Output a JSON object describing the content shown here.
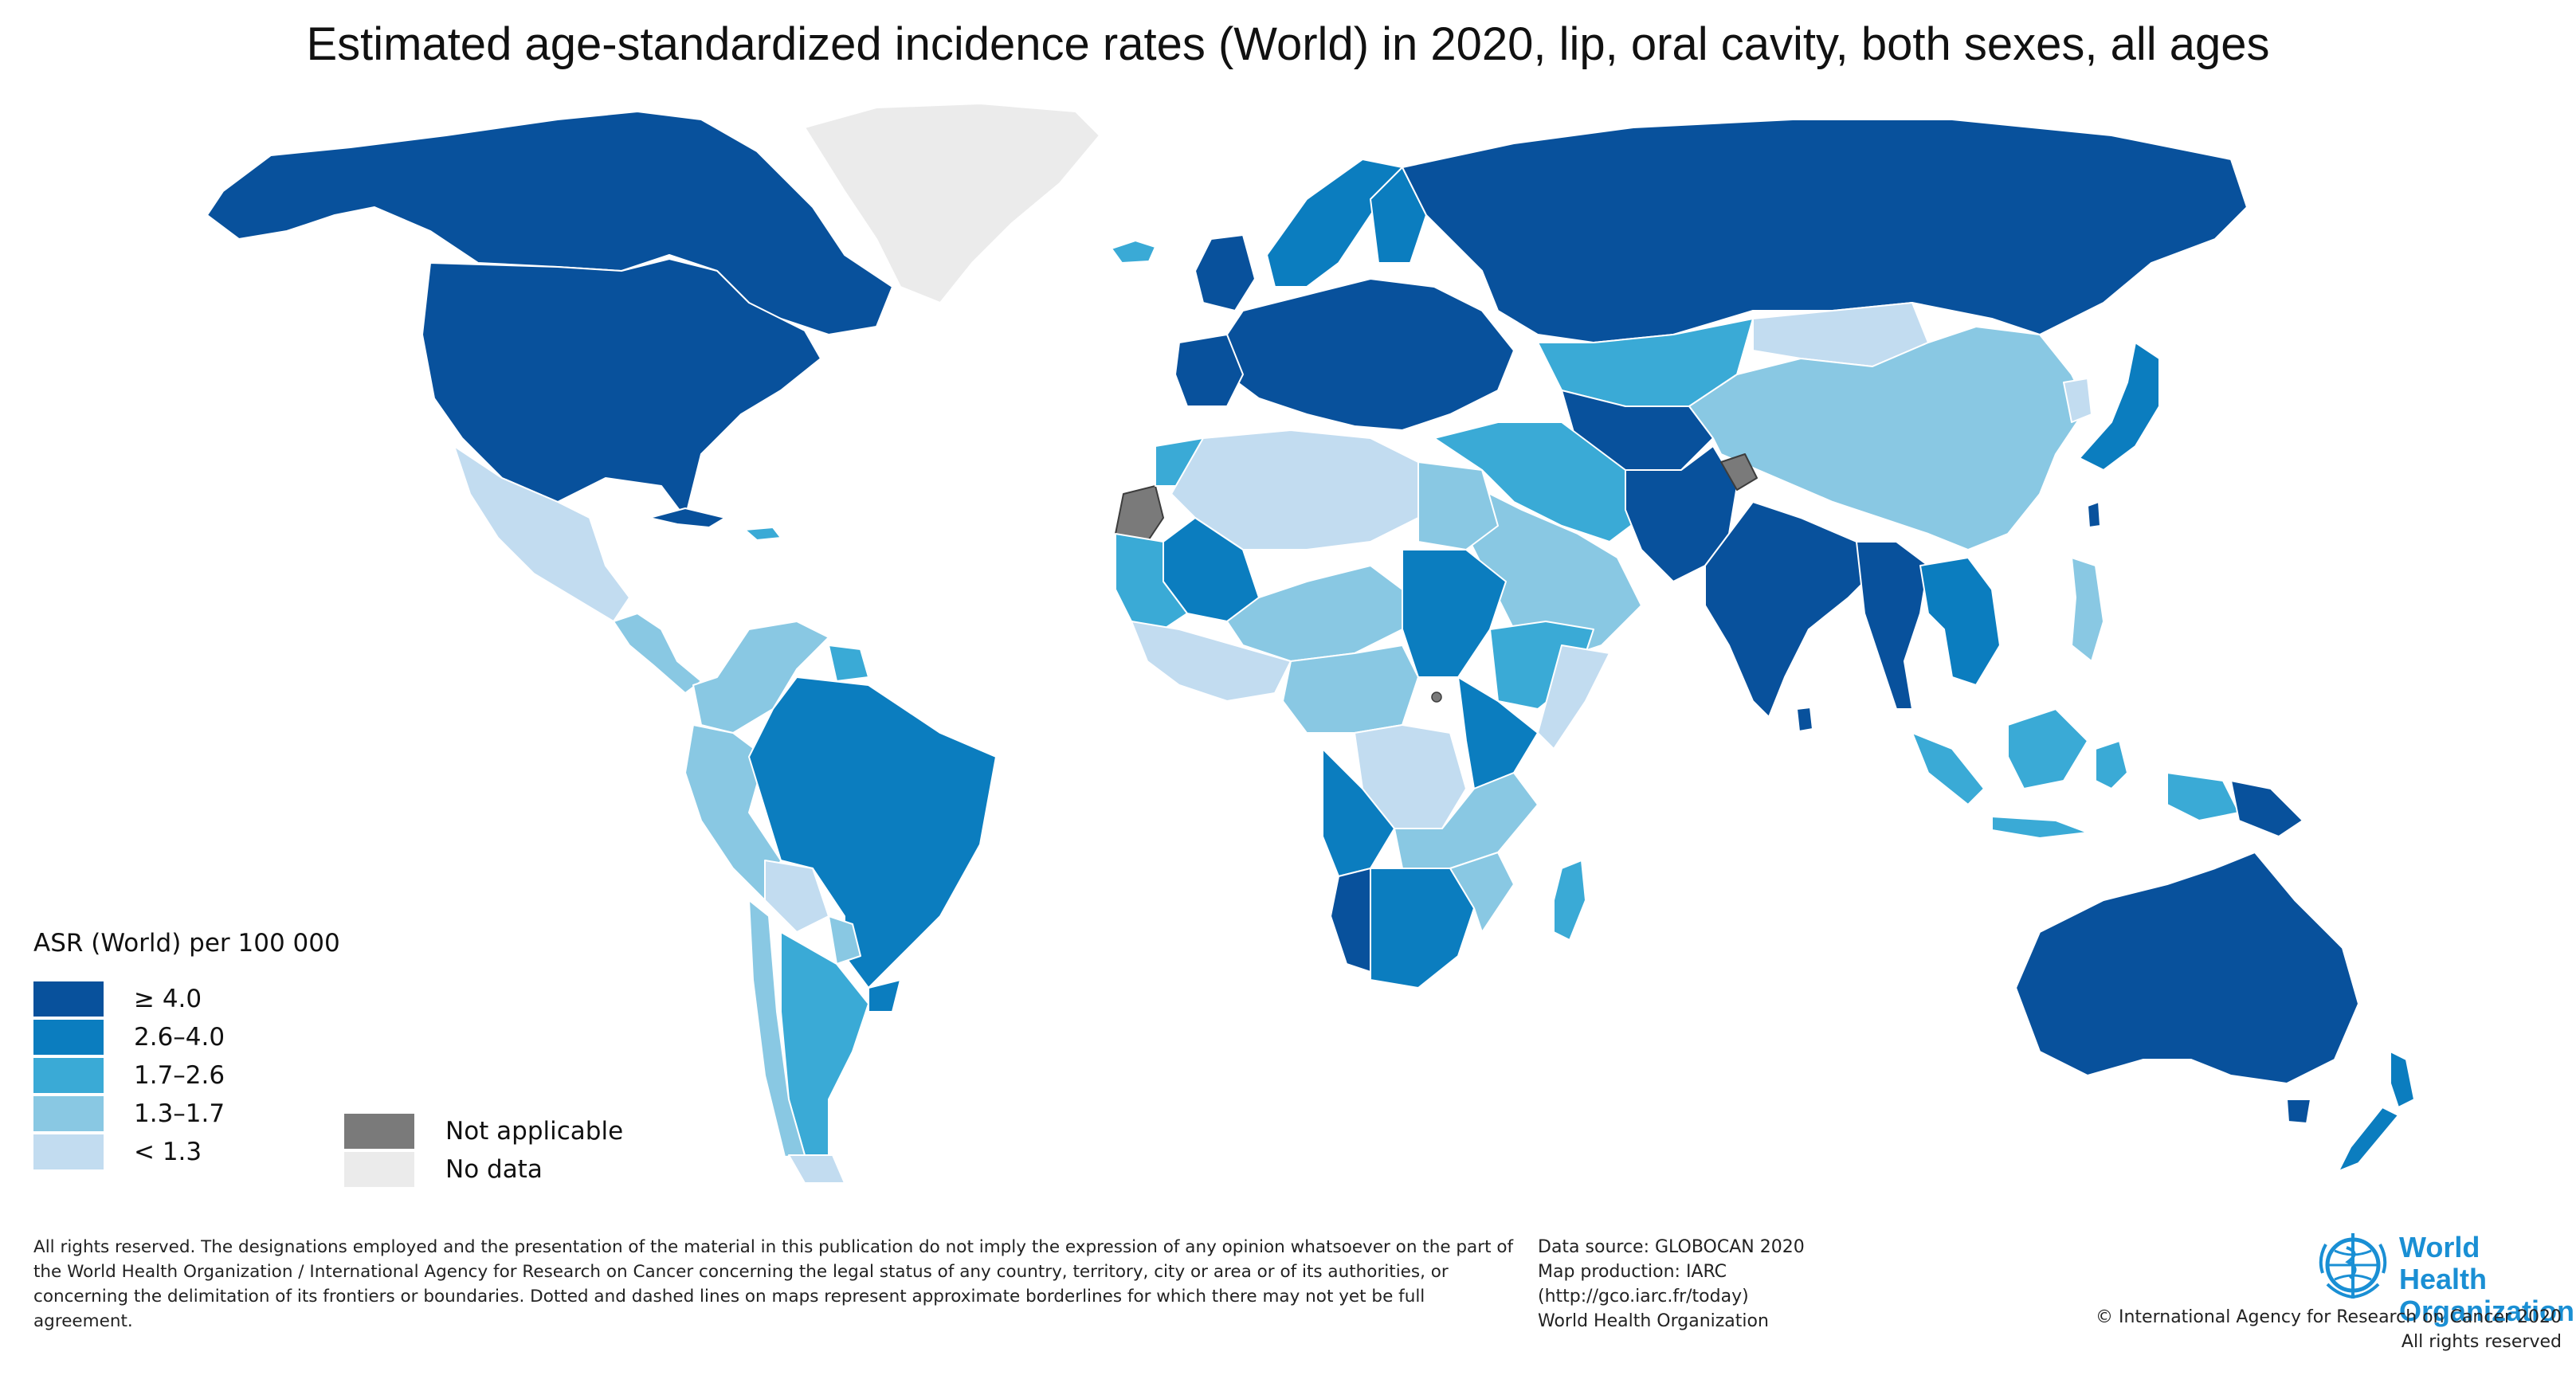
{
  "title": "Estimated age-standardized incidence rates (World) in 2020, lip, oral cavity, both sexes, all ages",
  "colors": {
    "c5": "#08519c",
    "c4": "#0b7dbf",
    "c3": "#3aaad6",
    "c2": "#89c8e3",
    "c1": "#c2dcf0",
    "na": "#7a7a7a",
    "nd": "#ebebeb",
    "border": "#ffffff",
    "border_dark": "#3d3d3d"
  },
  "legend": {
    "title": "ASR (World) per 100 000",
    "classes": [
      {
        "label": "≥ 4.0",
        "color_key": "c5"
      },
      {
        "label": "2.6–4.0",
        "color_key": "c4"
      },
      {
        "label": "1.7–2.6",
        "color_key": "c3"
      },
      {
        "label": "1.3–1.7",
        "color_key": "c2"
      },
      {
        "label": "< 1.3",
        "color_key": "c1"
      }
    ],
    "not_applicable": "Not applicable",
    "no_data": "No data"
  },
  "regions": [
    {
      "name": "canada-alaska",
      "cls": "c5"
    },
    {
      "name": "usa",
      "cls": "c5"
    },
    {
      "name": "greenland",
      "cls": "nd"
    },
    {
      "name": "iceland",
      "cls": "c3"
    },
    {
      "name": "mexico",
      "cls": "c1"
    },
    {
      "name": "central-america",
      "cls": "c2"
    },
    {
      "name": "cuba",
      "cls": "c5"
    },
    {
      "name": "caribbean",
      "cls": "c3"
    },
    {
      "name": "colombia-venezuela",
      "cls": "c2"
    },
    {
      "name": "guianas",
      "cls": "c3"
    },
    {
      "name": "ecuador-peru",
      "cls": "c2"
    },
    {
      "name": "brazil",
      "cls": "c4"
    },
    {
      "name": "bolivia",
      "cls": "c1"
    },
    {
      "name": "paraguay",
      "cls": "c2"
    },
    {
      "name": "uruguay",
      "cls": "c4"
    },
    {
      "name": "argentina",
      "cls": "c3"
    },
    {
      "name": "chile",
      "cls": "c2"
    },
    {
      "name": "patagonia",
      "cls": "c1"
    },
    {
      "name": "europe",
      "cls": "c5"
    },
    {
      "name": "british-isles",
      "cls": "c5"
    },
    {
      "name": "iberia",
      "cls": "c5"
    },
    {
      "name": "scandinavia",
      "cls": "c4"
    },
    {
      "name": "finland",
      "cls": "c4"
    },
    {
      "name": "russia",
      "cls": "c5"
    },
    {
      "name": "kazakhstan",
      "cls": "c3"
    },
    {
      "name": "central-asia",
      "cls": "c5"
    },
    {
      "name": "mongolia",
      "cls": "c1"
    },
    {
      "name": "china",
      "cls": "c2"
    },
    {
      "name": "korea",
      "cls": "c1"
    },
    {
      "name": "japan",
      "cls": "c4"
    },
    {
      "name": "turkey-iran",
      "cls": "c3"
    },
    {
      "name": "arabia",
      "cls": "c2"
    },
    {
      "name": "afghanistan-pakistan",
      "cls": "c5"
    },
    {
      "name": "kashmir",
      "cls": "na"
    },
    {
      "name": "india",
      "cls": "c5"
    },
    {
      "name": "bangladesh-myanmar",
      "cls": "c5"
    },
    {
      "name": "indochina",
      "cls": "c4"
    },
    {
      "name": "sri-lanka",
      "cls": "c5"
    },
    {
      "name": "taiwan",
      "cls": "c5"
    },
    {
      "name": "philippines",
      "cls": "c2"
    },
    {
      "name": "sumatra",
      "cls": "c3"
    },
    {
      "name": "borneo",
      "cls": "c3"
    },
    {
      "name": "java",
      "cls": "c3"
    },
    {
      "name": "sulawesi",
      "cls": "c3"
    },
    {
      "name": "new-guinea",
      "cls": "c3"
    },
    {
      "name": "png-east",
      "cls": "c5"
    },
    {
      "name": "australia",
      "cls": "c5"
    },
    {
      "name": "tasmania",
      "cls": "c5"
    },
    {
      "name": "new-zealand-north",
      "cls": "c4"
    },
    {
      "name": "new-zealand-south",
      "cls": "c4"
    },
    {
      "name": "western-sahara",
      "cls": "na"
    },
    {
      "name": "morocco",
      "cls": "c3"
    },
    {
      "name": "north-africa",
      "cls": "c1"
    },
    {
      "name": "egypt",
      "cls": "c2"
    },
    {
      "name": "mali",
      "cls": "c4"
    },
    {
      "name": "west-africa",
      "cls": "c3"
    },
    {
      "name": "west-coast",
      "cls": "c1"
    },
    {
      "name": "sahel",
      "cls": "c2"
    },
    {
      "name": "sudan",
      "cls": "c4"
    },
    {
      "name": "horn-of-africa",
      "cls": "c3"
    },
    {
      "name": "somalia",
      "cls": "c1"
    },
    {
      "name": "central-africa",
      "cls": "c2"
    },
    {
      "name": "congo",
      "cls": "c1"
    },
    {
      "name": "east-africa",
      "cls": "c4"
    },
    {
      "name": "angola",
      "cls": "c4"
    },
    {
      "name": "zambia-tanzania",
      "cls": "c2"
    },
    {
      "name": "namibia",
      "cls": "c5"
    },
    {
      "name": "southern-africa",
      "cls": "c4"
    },
    {
      "name": "mozambique",
      "cls": "c2"
    },
    {
      "name": "madagascar",
      "cls": "c3"
    }
  ],
  "footer": {
    "disclaimer": "All rights reserved. The designations employed and the presentation of the material in this publication do not imply the expression of any opinion whatsoever on the part of the World Health Organization / International Agency for Research on Cancer concerning the legal status of any country, territory, city or area or of its authorities, or concerning the delimitation of its frontiers or boundaries. Dotted and dashed lines on maps represent approximate borderlines for which there may not yet be full agreement.",
    "source_lines": [
      "Data source: GLOBOCAN 2020",
      "Map production: IARC",
      "(http://gco.iarc.fr/today)",
      "World Health Organization"
    ],
    "who_name_lines": [
      "World Health",
      "Organization"
    ],
    "copyright_lines": [
      "© International Agency for Research on Cancer 2020",
      "All rights reserved"
    ]
  }
}
